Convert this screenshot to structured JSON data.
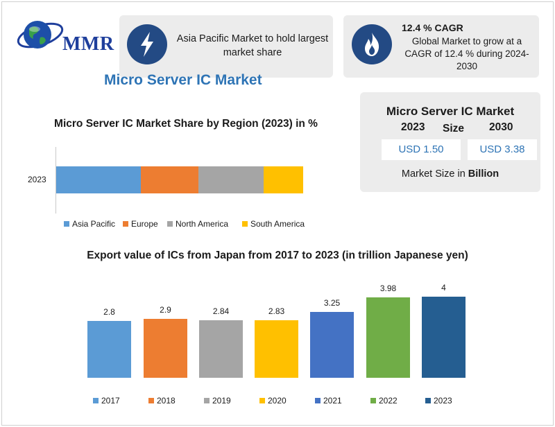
{
  "logo": {
    "text": "MMR"
  },
  "info_asia": {
    "text": "Asia Pacific Market to hold largest market share",
    "icon": "lightning-icon"
  },
  "info_cagr": {
    "title": "12.4 % CAGR",
    "text": "Global Market to grow at a CAGR of 12.4 % during 2024-2030",
    "icon": "flame-icon"
  },
  "main_title": "Micro Server IC Market",
  "market_size": {
    "title": "Micro Server IC Market",
    "size_word": "Size",
    "year_a": "2023",
    "year_b": "2030",
    "value_a": "USD 1.50",
    "value_b": "USD 3.38",
    "footer_prefix": "Market Size in ",
    "footer_bold": "Billion"
  },
  "colors": {
    "dark_blue": "#234a84",
    "title_blue": "#2e74b5",
    "card_bg": "#ececec"
  },
  "chart_data": [
    {
      "type": "bar",
      "orientation": "horizontal-stacked",
      "title": "Micro Server IC Market Share by Region (2023) in %",
      "categories": [
        "2023"
      ],
      "series": [
        {
          "name": "Asia Pacific",
          "values": [
            34
          ],
          "color": "#5b9bd5"
        },
        {
          "name": "Europe",
          "values": [
            23
          ],
          "color": "#ed7d31"
        },
        {
          "name": "North America",
          "values": [
            26
          ],
          "color": "#a5a5a5"
        },
        {
          "name": "South America",
          "values": [
            16
          ],
          "color": "#ffc000"
        }
      ],
      "legend": "bottom"
    },
    {
      "type": "bar",
      "title": "Export value of ICs from Japan from 2017 to 2023 (in trillion Japanese yen)",
      "categories": [
        "2017",
        "2018",
        "2019",
        "2020",
        "2021",
        "2022",
        "2023"
      ],
      "values": [
        2.8,
        2.9,
        2.84,
        2.83,
        3.25,
        3.98,
        4
      ],
      "value_labels": [
        "2.8",
        "2.9",
        "2.84",
        "2.83",
        "3.25",
        "3.98",
        "4"
      ],
      "colors": [
        "#5b9bd5",
        "#ed7d31",
        "#a5a5a5",
        "#ffc000",
        "#4472c4",
        "#70ad47",
        "#255e91"
      ],
      "ylim": [
        0,
        4.5
      ],
      "legend": "bottom",
      "grid": false
    }
  ]
}
